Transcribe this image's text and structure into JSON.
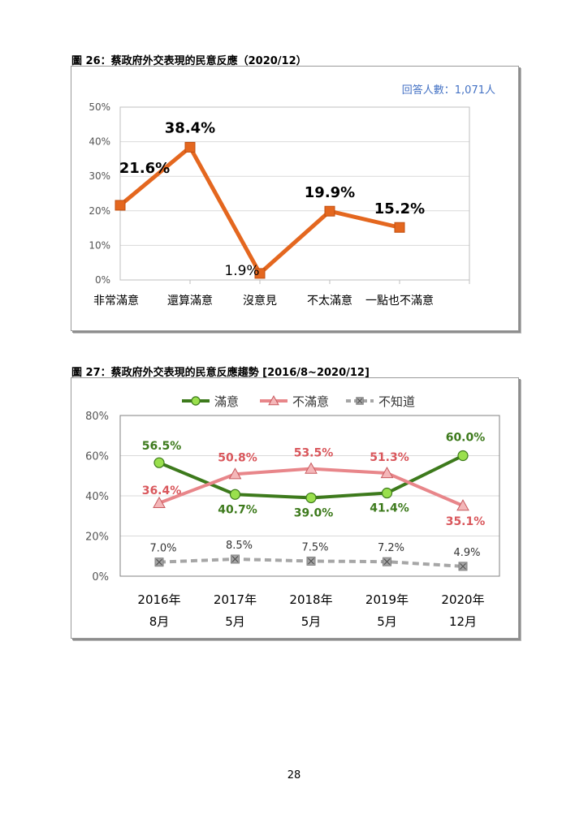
{
  "page": {
    "page_number": "28"
  },
  "figure26": {
    "title": "圖 26：蔡政府外交表現的民意反應（2020/12）",
    "respondents_note": "回答人數：1,071人"
  },
  "figure27": {
    "title": "圖 27：蔡政府外交表現的民意反應趨勢 [2016/8~2020/12]"
  },
  "chart_data": [
    {
      "type": "line",
      "categories": [
        "非常滿意",
        "還算滿意",
        "沒意見",
        "不太滿意",
        "一點也不滿意"
      ],
      "series": [
        {
          "values": [
            21.6,
            38.4,
            1.9,
            19.9,
            15.2
          ],
          "labels": [
            "21.6%",
            "38.4%",
            "1.9%",
            "19.9%",
            "15.2%"
          ],
          "color": "#e4671f",
          "marker": "square"
        }
      ],
      "y_ticks": [
        "0%",
        "10%",
        "20%",
        "30%",
        "40%",
        "50%"
      ],
      "ylim": [
        0,
        50
      ],
      "grid": true,
      "annotation": "回答人數：1,071人"
    },
    {
      "type": "line",
      "categories": [
        {
          "year": "2016年",
          "month": "8月"
        },
        {
          "year": "2017年",
          "month": "5月"
        },
        {
          "year": "2018年",
          "month": "5月"
        },
        {
          "year": "2019年",
          "month": "5月"
        },
        {
          "year": "2020年",
          "month": "12月"
        }
      ],
      "series": [
        {
          "name": "滿意",
          "values": [
            56.5,
            40.7,
            39.0,
            41.4,
            60.0
          ],
          "labels": [
            "56.5%",
            "40.7%",
            "39.0%",
            "41.4%",
            "60.0%"
          ],
          "color": "#3d7a1c",
          "marker_color": "#9ae04d",
          "marker": "circle"
        },
        {
          "name": "不滿意",
          "values": [
            36.4,
            50.8,
            53.5,
            51.3,
            35.1
          ],
          "labels": [
            "36.4%",
            "50.8%",
            "53.5%",
            "51.3%",
            "35.1%"
          ],
          "color": "#e8868a",
          "marker_color": "#f4b7b9",
          "marker": "triangle"
        },
        {
          "name": "不知道",
          "values": [
            7.0,
            8.5,
            7.5,
            7.2,
            4.9
          ],
          "labels": [
            "7.0%",
            "8.5%",
            "7.5%",
            "7.2%",
            "4.9%"
          ],
          "color": "#a6a6a6",
          "marker_color": "#a6a6a6",
          "marker": "x-square",
          "dashed": true
        }
      ],
      "y_ticks": [
        "0%",
        "20%",
        "40%",
        "60%",
        "80%"
      ],
      "ylim": [
        0,
        80
      ],
      "grid": true,
      "legend": "top-center"
    }
  ]
}
